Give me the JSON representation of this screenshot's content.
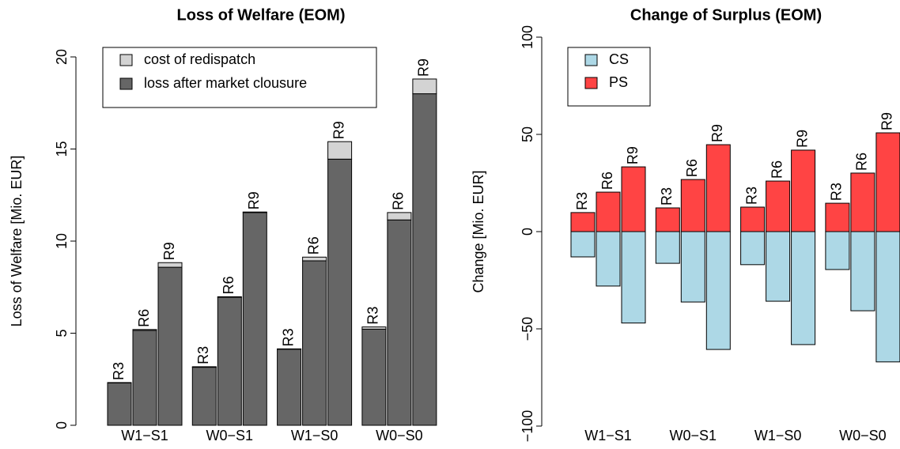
{
  "chart_data": [
    {
      "type": "bar",
      "stacked": true,
      "title": "Loss of Welfare (EOM)",
      "y_label": "Loss of Welfare [Mio. EUR]",
      "groups": [
        "W1−S1",
        "W0−S1",
        "W1−S0",
        "W0−S0"
      ],
      "categories": [
        "R3",
        "R6",
        "R9"
      ],
      "series": [
        {
          "name": "cost of redispatch",
          "color": "#d3d3d3",
          "values": [
            [
              0.02,
              0.05,
              0.25
            ],
            [
              0.03,
              0.03,
              0.03
            ],
            [
              0.02,
              0.2,
              0.95
            ],
            [
              0.12,
              0.4,
              0.8
            ]
          ]
        },
        {
          "name": "loss after market clousure",
          "color": "#666666",
          "values": [
            [
              2.3,
              5.15,
              8.58
            ],
            [
              3.15,
              6.95,
              11.55
            ],
            [
              4.13,
              8.93,
              14.45
            ],
            [
              5.22,
              11.15,
              18.0
            ]
          ]
        }
      ],
      "ylim": [
        0,
        20
      ],
      "yticks": [
        0,
        5,
        10,
        15,
        20
      ],
      "legend": "topleft"
    },
    {
      "type": "bar",
      "stacked": true,
      "title": "Change of Surplus (EOM)",
      "y_label": "Change [Mio. EUR]",
      "groups": [
        "W1−S1",
        "W0−S1",
        "W1−S0",
        "W0−S0"
      ],
      "categories": [
        "R3",
        "R6",
        "R9"
      ],
      "series": [
        {
          "name": "CS",
          "color": "#add8e6",
          "values": [
            [
              -13,
              -28,
              -47
            ],
            [
              -16.3,
              -36.2,
              -60.6
            ],
            [
              -17,
              -35.8,
              -58.1
            ],
            [
              -19.5,
              -40.7,
              -67
            ]
          ]
        },
        {
          "name": "PS",
          "color": "#ff4444",
          "values": [
            [
              9.8,
              20.3,
              33.3
            ],
            [
              12.2,
              26.8,
              44.7
            ],
            [
              12.6,
              26,
              41.9
            ],
            [
              14.6,
              30.1,
              50.8
            ]
          ]
        }
      ],
      "ylim": [
        -100,
        100
      ],
      "yticks": [
        {
          "value": -100,
          "label": "−100"
        },
        {
          "value": -50,
          "label": "−50"
        },
        0,
        50,
        100
      ],
      "legend": "topleft"
    }
  ]
}
